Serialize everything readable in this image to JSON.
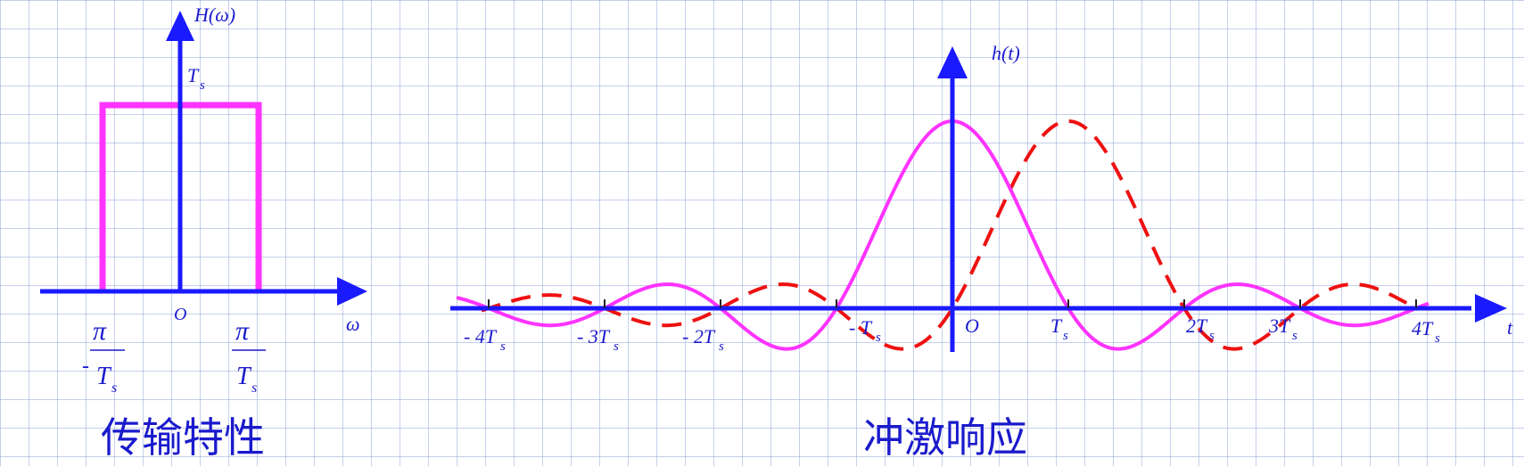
{
  "left_panel": {
    "axis_label": "H(ω)",
    "amplitude_label": "T",
    "amplitude_sub": "s",
    "origin_label": "O",
    "x_axis_label": "ω",
    "neg_cutoff": {
      "sign": "-",
      "numerator": "π",
      "denominator": "T",
      "sub": "s"
    },
    "pos_cutoff": {
      "numerator": "π",
      "denominator": "T",
      "sub": "s"
    },
    "caption": "传输特性"
  },
  "right_panel": {
    "axis_label": "h(t)",
    "origin_label": "O",
    "x_axis_label": "t",
    "ticks": [
      {
        "label": "- 4T",
        "sub": "s"
      },
      {
        "label": "- 3T",
        "sub": "s"
      },
      {
        "label": "- 2T",
        "sub": "s"
      },
      {
        "label": "- T",
        "sub": "s"
      },
      {
        "label": "T",
        "sub": "s"
      },
      {
        "label": "2T",
        "sub": "s"
      },
      {
        "label": "3T",
        "sub": "s"
      },
      {
        "label": "4T",
        "sub": "s"
      }
    ],
    "caption": "冲激响应"
  },
  "colors": {
    "axis": "#1a1aff",
    "curve": "#ff33ff",
    "dashed": "#ee1111",
    "text": "#1a1acc"
  }
}
